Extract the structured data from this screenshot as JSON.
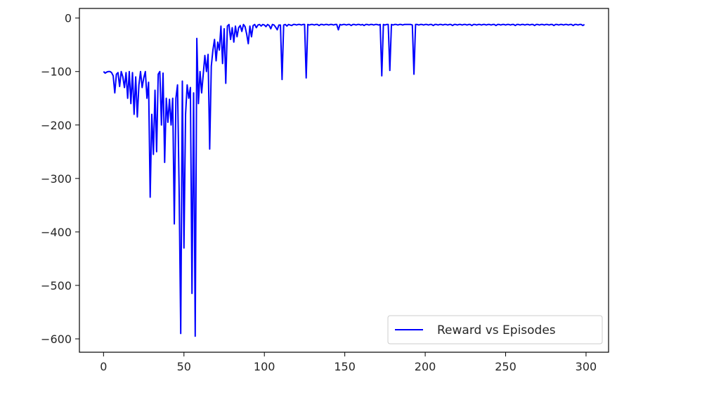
{
  "chart_data": {
    "type": "line",
    "title": "",
    "xlabel": "",
    "ylabel": "",
    "xlim": [
      -15,
      314
    ],
    "ylim": [
      -625,
      18
    ],
    "xticks": [
      0,
      50,
      100,
      150,
      200,
      250,
      300
    ],
    "yticks": [
      0,
      -100,
      -200,
      -300,
      -400,
      -500,
      -600
    ],
    "xtick_labels": [
      "0",
      "50",
      "100",
      "150",
      "200",
      "250",
      "300"
    ],
    "ytick_labels": [
      "0",
      "−100",
      "−200",
      "−300",
      "−400",
      "−500",
      "−600"
    ],
    "grid": false,
    "legend": {
      "position": "bottom-right",
      "entries": [
        "Reward vs Episodes"
      ]
    },
    "series": [
      {
        "name": "Reward vs Episodes",
        "color": "#0000ff",
        "points": [
          [
            0,
            -100
          ],
          [
            1,
            -103
          ],
          [
            2,
            -101
          ],
          [
            3,
            -100
          ],
          [
            4,
            -100
          ],
          [
            5,
            -102
          ],
          [
            6,
            -108
          ],
          [
            7,
            -140
          ],
          [
            8,
            -105
          ],
          [
            9,
            -102
          ],
          [
            10,
            -128
          ],
          [
            11,
            -100
          ],
          [
            12,
            -110
          ],
          [
            13,
            -130
          ],
          [
            14,
            -102
          ],
          [
            15,
            -150
          ],
          [
            16,
            -100
          ],
          [
            17,
            -160
          ],
          [
            18,
            -102
          ],
          [
            19,
            -180
          ],
          [
            20,
            -110
          ],
          [
            21,
            -185
          ],
          [
            22,
            -125
          ],
          [
            23,
            -100
          ],
          [
            24,
            -130
          ],
          [
            25,
            -112
          ],
          [
            26,
            -100
          ],
          [
            27,
            -150
          ],
          [
            28,
            -120
          ],
          [
            29,
            -335
          ],
          [
            30,
            -180
          ],
          [
            31,
            -255
          ],
          [
            32,
            -135
          ],
          [
            33,
            -250
          ],
          [
            34,
            -105
          ],
          [
            35,
            -100
          ],
          [
            36,
            -200
          ],
          [
            37,
            -103
          ],
          [
            38,
            -270
          ],
          [
            39,
            -150
          ],
          [
            40,
            -195
          ],
          [
            41,
            -152
          ],
          [
            42,
            -200
          ],
          [
            43,
            -150
          ],
          [
            44,
            -385
          ],
          [
            45,
            -150
          ],
          [
            46,
            -125
          ],
          [
            47,
            -320
          ],
          [
            48,
            -590
          ],
          [
            49,
            -118
          ],
          [
            50,
            -430
          ],
          [
            51,
            -180
          ],
          [
            52,
            -125
          ],
          [
            53,
            -150
          ],
          [
            54,
            -130
          ],
          [
            55,
            -515
          ],
          [
            56,
            -140
          ],
          [
            57,
            -595
          ],
          [
            58,
            -38
          ],
          [
            59,
            -160
          ],
          [
            60,
            -100
          ],
          [
            61,
            -140
          ],
          [
            62,
            -105
          ],
          [
            63,
            -70
          ],
          [
            64,
            -100
          ],
          [
            65,
            -68
          ],
          [
            66,
            -245
          ],
          [
            67,
            -90
          ],
          [
            68,
            -60
          ],
          [
            69,
            -40
          ],
          [
            70,
            -80
          ],
          [
            71,
            -45
          ],
          [
            72,
            -60
          ],
          [
            73,
            -15
          ],
          [
            74,
            -85
          ],
          [
            75,
            -20
          ],
          [
            76,
            -122
          ],
          [
            77,
            -15
          ],
          [
            78,
            -12
          ],
          [
            79,
            -40
          ],
          [
            80,
            -18
          ],
          [
            81,
            -45
          ],
          [
            82,
            -15
          ],
          [
            83,
            -35
          ],
          [
            84,
            -18
          ],
          [
            85,
            -14
          ],
          [
            86,
            -25
          ],
          [
            87,
            -12
          ],
          [
            88,
            -16
          ],
          [
            89,
            -30
          ],
          [
            90,
            -48
          ],
          [
            91,
            -15
          ],
          [
            92,
            -35
          ],
          [
            93,
            -14
          ],
          [
            94,
            -12
          ],
          [
            95,
            -18
          ],
          [
            96,
            -13
          ],
          [
            97,
            -12
          ],
          [
            98,
            -15
          ],
          [
            99,
            -12
          ],
          [
            100,
            -13
          ],
          [
            101,
            -16
          ],
          [
            102,
            -12
          ],
          [
            103,
            -14
          ],
          [
            104,
            -20
          ],
          [
            105,
            -12
          ],
          [
            106,
            -13
          ],
          [
            107,
            -17
          ],
          [
            108,
            -22
          ],
          [
            109,
            -13
          ],
          [
            110,
            -13
          ],
          [
            111,
            -115
          ],
          [
            112,
            -13
          ],
          [
            113,
            -12
          ],
          [
            114,
            -15
          ],
          [
            115,
            -12
          ],
          [
            116,
            -13
          ],
          [
            117,
            -14
          ],
          [
            118,
            -12
          ],
          [
            119,
            -12
          ],
          [
            120,
            -13
          ],
          [
            121,
            -12
          ],
          [
            122,
            -12
          ],
          [
            123,
            -13
          ],
          [
            124,
            -12
          ],
          [
            125,
            -12
          ],
          [
            126,
            -112
          ],
          [
            127,
            -12
          ],
          [
            128,
            -13
          ],
          [
            129,
            -12
          ],
          [
            130,
            -12
          ],
          [
            131,
            -13
          ],
          [
            132,
            -12
          ],
          [
            133,
            -12
          ],
          [
            134,
            -14
          ],
          [
            135,
            -12
          ],
          [
            136,
            -12
          ],
          [
            137,
            -13
          ],
          [
            138,
            -12
          ],
          [
            139,
            -12
          ],
          [
            140,
            -13
          ],
          [
            141,
            -12
          ],
          [
            142,
            -12
          ],
          [
            143,
            -13
          ],
          [
            144,
            -12
          ],
          [
            145,
            -12
          ],
          [
            146,
            -22
          ],
          [
            147,
            -12
          ],
          [
            148,
            -13
          ],
          [
            149,
            -12
          ],
          [
            150,
            -12
          ],
          [
            151,
            -13
          ],
          [
            152,
            -12
          ],
          [
            153,
            -12
          ],
          [
            154,
            -14
          ],
          [
            155,
            -12
          ],
          [
            156,
            -12
          ],
          [
            157,
            -13
          ],
          [
            158,
            -12
          ],
          [
            159,
            -12
          ],
          [
            160,
            -13
          ],
          [
            161,
            -12
          ],
          [
            162,
            -14
          ],
          [
            163,
            -12
          ],
          [
            164,
            -12
          ],
          [
            165,
            -13
          ],
          [
            166,
            -12
          ],
          [
            167,
            -12
          ],
          [
            168,
            -13
          ],
          [
            169,
            -12
          ],
          [
            170,
            -12
          ],
          [
            171,
            -13
          ],
          [
            172,
            -12
          ],
          [
            173,
            -108
          ],
          [
            174,
            -12
          ],
          [
            175,
            -13
          ],
          [
            176,
            -12
          ],
          [
            177,
            -12
          ],
          [
            178,
            -98
          ],
          [
            179,
            -12
          ],
          [
            180,
            -13
          ],
          [
            181,
            -12
          ],
          [
            182,
            -12
          ],
          [
            183,
            -13
          ],
          [
            184,
            -12
          ],
          [
            185,
            -12
          ],
          [
            186,
            -13
          ],
          [
            187,
            -12
          ],
          [
            188,
            -12
          ],
          [
            189,
            -12
          ],
          [
            190,
            -12
          ],
          [
            191,
            -12
          ],
          [
            192,
            -13
          ],
          [
            193,
            -105
          ],
          [
            194,
            -12
          ],
          [
            195,
            -12
          ],
          [
            196,
            -13
          ],
          [
            197,
            -12
          ],
          [
            198,
            -12
          ],
          [
            199,
            -13
          ],
          [
            200,
            -12
          ],
          [
            201,
            -12
          ],
          [
            202,
            -13
          ],
          [
            203,
            -12
          ],
          [
            204,
            -12
          ],
          [
            205,
            -14
          ],
          [
            206,
            -12
          ],
          [
            207,
            -12
          ],
          [
            208,
            -13
          ],
          [
            209,
            -12
          ],
          [
            210,
            -12
          ],
          [
            211,
            -13
          ],
          [
            212,
            -12
          ],
          [
            213,
            -12
          ],
          [
            214,
            -13
          ],
          [
            215,
            -12
          ],
          [
            216,
            -12
          ],
          [
            217,
            -14
          ],
          [
            218,
            -12
          ],
          [
            219,
            -12
          ],
          [
            220,
            -13
          ],
          [
            221,
            -12
          ],
          [
            222,
            -12
          ],
          [
            223,
            -13
          ],
          [
            224,
            -12
          ],
          [
            225,
            -12
          ],
          [
            226,
            -13
          ],
          [
            227,
            -12
          ],
          [
            228,
            -12
          ],
          [
            229,
            -14
          ],
          [
            230,
            -12
          ],
          [
            231,
            -12
          ],
          [
            232,
            -13
          ],
          [
            233,
            -12
          ],
          [
            234,
            -12
          ],
          [
            235,
            -13
          ],
          [
            236,
            -12
          ],
          [
            237,
            -12
          ],
          [
            238,
            -13
          ],
          [
            239,
            -12
          ],
          [
            240,
            -12
          ],
          [
            241,
            -13
          ],
          [
            242,
            -12
          ],
          [
            243,
            -12
          ],
          [
            244,
            -14
          ],
          [
            245,
            -12
          ],
          [
            246,
            -12
          ],
          [
            247,
            -13
          ],
          [
            248,
            -12
          ],
          [
            249,
            -12
          ],
          [
            250,
            -13
          ],
          [
            251,
            -12
          ],
          [
            252,
            -12
          ],
          [
            253,
            -13
          ],
          [
            254,
            -12
          ],
          [
            255,
            -12
          ],
          [
            256,
            -14
          ],
          [
            257,
            -12
          ],
          [
            258,
            -12
          ],
          [
            259,
            -13
          ],
          [
            260,
            -12
          ],
          [
            261,
            -12
          ],
          [
            262,
            -13
          ],
          [
            263,
            -12
          ],
          [
            264,
            -12
          ],
          [
            265,
            -13
          ],
          [
            266,
            -12
          ],
          [
            267,
            -12
          ],
          [
            268,
            -14
          ],
          [
            269,
            -12
          ],
          [
            270,
            -12
          ],
          [
            271,
            -13
          ],
          [
            272,
            -12
          ],
          [
            273,
            -12
          ],
          [
            274,
            -13
          ],
          [
            275,
            -12
          ],
          [
            276,
            -12
          ],
          [
            277,
            -13
          ],
          [
            278,
            -12
          ],
          [
            279,
            -12
          ],
          [
            280,
            -14
          ],
          [
            281,
            -12
          ],
          [
            282,
            -12
          ],
          [
            283,
            -13
          ],
          [
            284,
            -12
          ],
          [
            285,
            -12
          ],
          [
            286,
            -13
          ],
          [
            287,
            -12
          ],
          [
            288,
            -12
          ],
          [
            289,
            -13
          ],
          [
            290,
            -12
          ],
          [
            291,
            -12
          ],
          [
            292,
            -14
          ],
          [
            293,
            -12
          ],
          [
            294,
            -12
          ],
          [
            295,
            -13
          ],
          [
            296,
            -12
          ],
          [
            297,
            -12
          ],
          [
            298,
            -14
          ],
          [
            299,
            -12
          ]
        ]
      }
    ]
  }
}
